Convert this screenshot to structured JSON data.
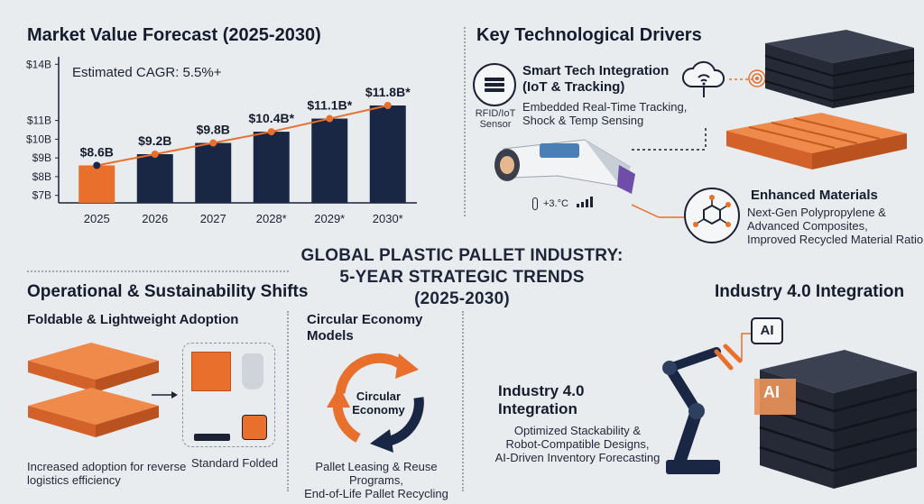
{
  "chart_data": {
    "type": "bar",
    "title": "Market Value Forecast (2025-2030)",
    "annotation": "Estimated CAGR: 5.5%+",
    "categories": [
      "2025",
      "2026",
      "2027",
      "2028*",
      "2029*",
      "2030*"
    ],
    "values": [
      8.6,
      9.2,
      9.8,
      10.4,
      11.1,
      11.8
    ],
    "value_labels": [
      "$8.6B",
      "$9.2B",
      "$9.8B",
      "$10.4B*",
      "$11.1B*",
      "$11.8B*"
    ],
    "y_ticks": [
      7,
      8,
      9,
      10,
      11,
      14
    ],
    "y_tick_labels": [
      "$7B",
      "$8B",
      "$9B",
      "$10B",
      "$11B",
      "$14B"
    ],
    "ylim": [
      6.6,
      14.4
    ],
    "colors": {
      "highlight": "#e86f2c",
      "bar": "#1a2744",
      "trend": "#e86f2c"
    }
  },
  "center": {
    "line1": "GLOBAL PLASTIC PALLET INDUSTRY:",
    "line2": "5-YEAR STRATEGIC TRENDS",
    "line3": "(2025-2030)"
  },
  "tech": {
    "title": "Key Technological Drivers",
    "sensor_label_1": "RFID/IoT",
    "sensor_label_2": "Sensor",
    "smart_title_1": "Smart Tech Integration",
    "smart_title_2": "(IoT & Tracking)",
    "smart_desc_1": "Embedded Real-Time Tracking,",
    "smart_desc_2": "Shock & Temp Sensing",
    "temp_readout": "+3.°C",
    "mat_title": "Enhanced Materials",
    "mat_desc_1": "Next-Gen Polypropylene &",
    "mat_desc_2": "Advanced Composites,",
    "mat_desc_3": "Improved Recycled Material Ratio"
  },
  "ops": {
    "title": "Operational & Sustainability Shifts",
    "fold_title": "Foldable & Lightweight Adoption",
    "fold_caption_1": "Increased adoption for reverse",
    "fold_caption_2": "logistics efficiency",
    "standard_label": "Standard",
    "folded_label": "Folded",
    "circ_title_1": "Circular Economy",
    "circ_title_2": "Models",
    "circ_center_1": "Circular",
    "circ_center_2": "Economy",
    "circ_desc_1": "Pallet Leasing & Reuse Programs,",
    "circ_desc_2": "End-of-Life Pallet Recycling"
  },
  "industry": {
    "title": "Industry 4.0 Integration",
    "sub_title_1": "Industry 4.0",
    "sub_title_2": "Integration",
    "desc_1": "Optimized Stackability &",
    "desc_2": "Robot-Compatible Designs,",
    "desc_3": "AI-Driven Inventory Forecasting",
    "chip_label": "AI",
    "box_label": "AI"
  }
}
